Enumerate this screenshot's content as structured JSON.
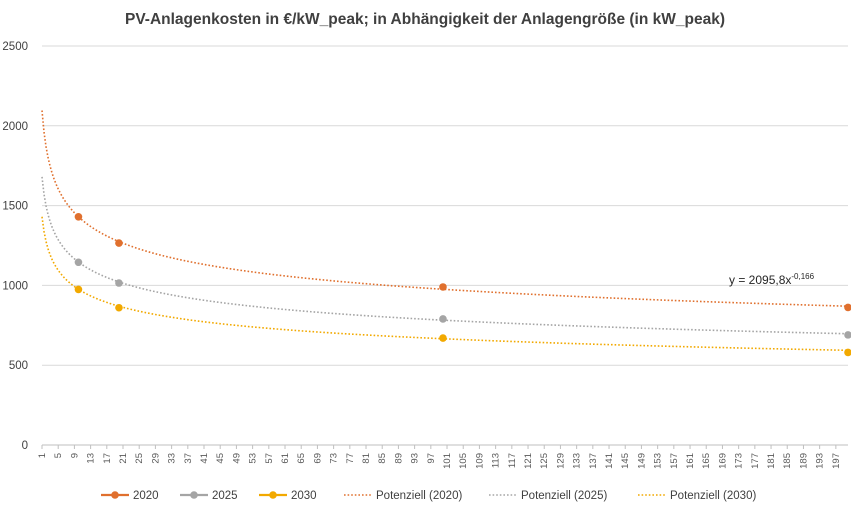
{
  "chart_data": {
    "type": "scatter",
    "title": "PV-Anlagenkosten in €/kW_peak; in Abhängigkeit der Anlagengröße (in kW_peak)",
    "xlabel": "",
    "ylabel": "",
    "ylim": [
      0,
      2500
    ],
    "xlim": [
      1,
      200
    ],
    "y_ticks": [
      0,
      500,
      1000,
      1500,
      2000,
      2500
    ],
    "x_ticks": [
      1,
      5,
      9,
      13,
      17,
      21,
      25,
      29,
      33,
      37,
      41,
      45,
      49,
      53,
      57,
      61,
      65,
      69,
      73,
      77,
      81,
      85,
      89,
      93,
      97,
      101,
      105,
      109,
      113,
      117,
      121,
      125,
      129,
      133,
      137,
      141,
      145,
      149,
      153,
      157,
      161,
      165,
      169,
      173,
      177,
      181,
      185,
      189,
      193,
      197
    ],
    "grid": "horizontal",
    "legend_position": "bottom",
    "series": [
      {
        "name": "2020",
        "color": "#E0702E",
        "x": [
          10,
          20,
          100,
          200
        ],
        "values": [
          1430,
          1265,
          990,
          862
        ]
      },
      {
        "name": "2025",
        "color": "#A5A5A5",
        "x": [
          10,
          20,
          100,
          200
        ],
        "values": [
          1145,
          1015,
          790,
          690
        ]
      },
      {
        "name": "2030",
        "color": "#F2A900",
        "x": [
          10,
          20,
          100,
          200
        ],
        "values": [
          975,
          860,
          670,
          580
        ]
      }
    ],
    "trendlines": [
      {
        "name": "Potenziell (2020)",
        "color": "#E0702E",
        "type": "power",
        "a": 2095.8,
        "b": -0.166,
        "x_start": 1,
        "x_end": 200
      },
      {
        "name": "Potenziell (2025)",
        "color": "#A5A5A5",
        "type": "power",
        "a": 1680,
        "b": -0.166,
        "x_start": 1,
        "x_end": 200
      },
      {
        "name": "Potenziell (2030)",
        "color": "#F2A900",
        "type": "power",
        "a": 1430,
        "b": -0.166,
        "x_start": 1,
        "x_end": 200
      }
    ],
    "annotation": {
      "equation_base": "y = 2095,8x",
      "equation_exponent": "-0,166"
    }
  }
}
